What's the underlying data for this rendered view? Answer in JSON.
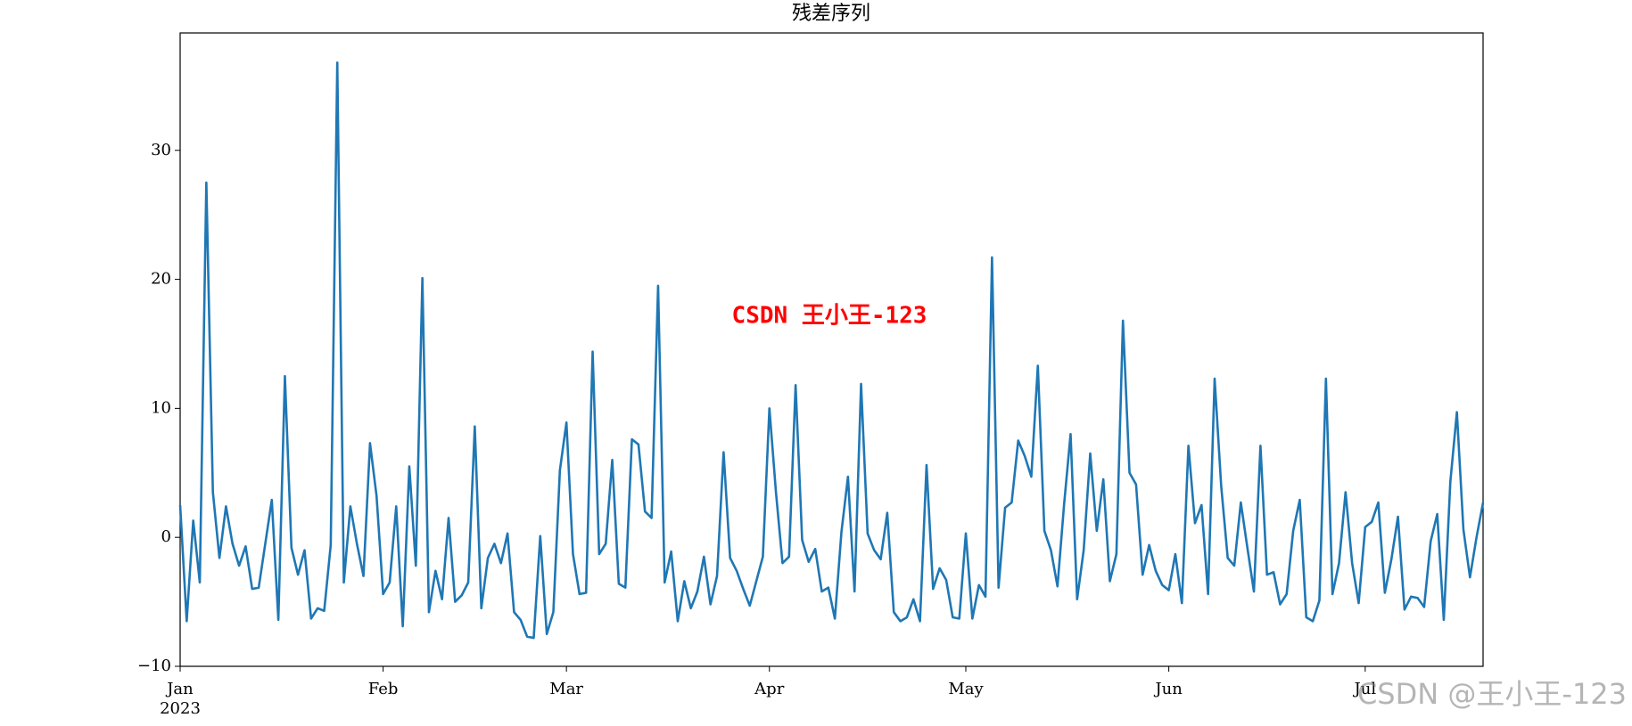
{
  "chart_data": {
    "type": "line",
    "title": "残差序列",
    "x_year_label": "2023",
    "series": [
      {
        "color": "#1f77b4",
        "values": [
          2.5,
          -6.5,
          1.3,
          -3.5,
          27.5,
          3.5,
          -1.6,
          2.4,
          -0.5,
          -2.2,
          -0.7,
          -4,
          -3.9,
          -0.5,
          2.9,
          -6.4,
          12.5,
          -0.8,
          -2.9,
          -1,
          -6.3,
          -5.5,
          -5.7,
          -0.6,
          36.8,
          -3.5,
          2.4,
          -0.5,
          -3,
          7.3,
          3.2,
          -4.4,
          -3.5,
          2.4,
          -6.9,
          5.5,
          -2.2,
          20.1,
          -5.8,
          -2.6,
          -4.8,
          1.5,
          -5,
          -4.5,
          -3.5,
          8.6,
          -5.5,
          -1.6,
          -0.5,
          -2,
          0.3,
          -5.8,
          -6.4,
          -7.7,
          -7.8,
          0.1,
          -7.5,
          -5.8,
          5.2,
          8.9,
          -1.3,
          -4.4,
          -4.3,
          14.4,
          -1.3,
          -0.5,
          6,
          -3.6,
          -3.9,
          7.6,
          7.2,
          2,
          1.5,
          19.5,
          -3.5,
          -1.1,
          -6.5,
          -3.4,
          -5.5,
          -4.2,
          -1.5,
          -5.2,
          -3,
          6.6,
          -1.6,
          -2.6,
          -4,
          -5.3,
          -3.4,
          -1.5,
          10,
          3.5,
          -2,
          -1.5,
          11.8,
          -0.2,
          -1.9,
          -0.9,
          -4.2,
          -3.9,
          -6.3,
          0.4,
          4.7,
          -4.2,
          11.9,
          0.3,
          -1,
          -1.7,
          1.9,
          -5.8,
          -6.5,
          -6.2,
          -4.8,
          -6.5,
          5.6,
          -4,
          -2.4,
          -3.3,
          -6.2,
          -6.3,
          0.3,
          -6.3,
          -3.7,
          -4.6,
          21.7,
          -3.9,
          2.3,
          2.7,
          7.5,
          6.3,
          4.7,
          13.3,
          0.5,
          -1,
          -3.8,
          2.5,
          8,
          -4.8,
          -1,
          6.5,
          0.5,
          4.5,
          -3.4,
          -1.3,
          16.8,
          5,
          4.1,
          -2.9,
          -0.6,
          -2.6,
          -3.7,
          -4.1,
          -1.3,
          -5.1,
          7.1,
          1.1,
          2.5,
          -4.4,
          12.3,
          4,
          -1.6,
          -2.2,
          2.7,
          -0.8,
          -4.2,
          7.1,
          -2.9,
          -2.7,
          -5.2,
          -4.4,
          0.5,
          2.9,
          -6.2,
          -6.5,
          -4.9,
          12.3,
          -4.4,
          -2,
          3.5,
          -2,
          -5.1,
          0.8,
          1.2,
          2.7,
          -4.3,
          -1.7,
          1.6,
          -5.6,
          -4.6,
          -4.7,
          -5.4,
          -0.3,
          1.8,
          -6.4,
          4.3,
          9.7,
          0.6,
          -3.1,
          0,
          2.7
        ]
      }
    ],
    "xlim": [
      0,
      199
    ],
    "xticks": [
      {
        "value": 0,
        "label": "Jan"
      },
      {
        "value": 31,
        "label": "Feb"
      },
      {
        "value": 59,
        "label": "Mar"
      },
      {
        "value": 90,
        "label": "Apr"
      },
      {
        "value": 120,
        "label": "May"
      },
      {
        "value": 151,
        "label": "Jun"
      },
      {
        "value": 181,
        "label": "Jul"
      }
    ],
    "ylim": [
      -10,
      39.1
    ],
    "yticks": [
      {
        "value": -10,
        "label": "−10"
      },
      0,
      10,
      20,
      30
    ],
    "annotations": [
      {
        "text": "CSDN 王小王-123",
        "color": "#ff0000"
      }
    ],
    "watermark": "CSDN @王小王-123"
  }
}
